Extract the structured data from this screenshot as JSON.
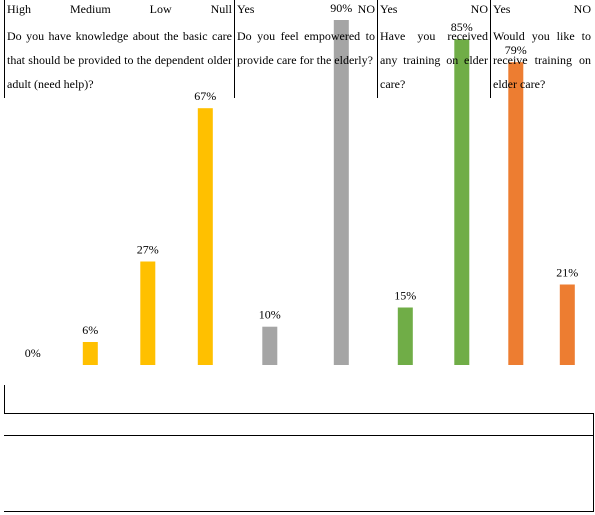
{
  "chart_data": {
    "type": "bar",
    "ylim": [
      0,
      100
    ],
    "grid": false,
    "value_suffix": "%",
    "groups": [
      {
        "question": "Do you have knowledge about the basic care that should be provided to the dependent older adult (need help)?",
        "color": "#FFC000",
        "categories": [
          "High",
          "Medium",
          "Low",
          "Null"
        ],
        "values": [
          0,
          6,
          27,
          67
        ]
      },
      {
        "question": "Do you feel empowered to provide care for the elderly?",
        "color": "#A5A5A5",
        "categories": [
          "Yes",
          "NO"
        ],
        "values": [
          10,
          90
        ]
      },
      {
        "question": "Have you received any training on elder care?",
        "color": "#70AD47",
        "categories": [
          "Yes",
          "NO"
        ],
        "values": [
          15,
          85
        ]
      },
      {
        "question": "Would you like to receive training on elder care?",
        "color": "#ED7D31",
        "categories": [
          "Yes",
          "NO"
        ],
        "values": [
          79,
          21
        ]
      }
    ]
  }
}
